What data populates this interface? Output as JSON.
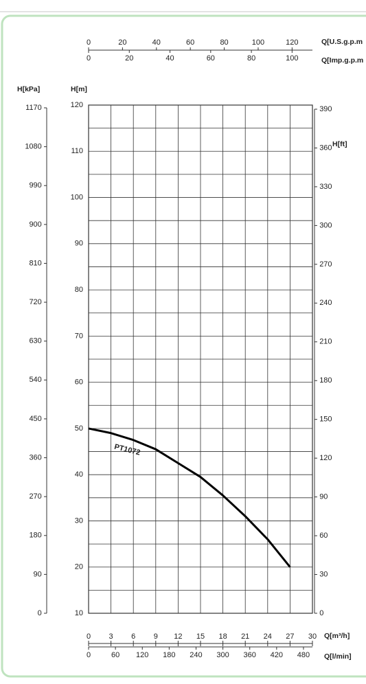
{
  "chart_data": {
    "type": "line",
    "x": [
      0,
      3,
      6,
      9,
      12,
      15,
      18,
      21,
      24,
      27
    ],
    "series": [
      {
        "name": "PT1072",
        "color": "#000000",
        "values": [
          50,
          49,
          47.5,
          45.5,
          42.5,
          39.5,
          35.5,
          31,
          26,
          20
        ]
      }
    ],
    "xlabel": "Q[m³/h]",
    "ylabel": "H[m]",
    "xlim": [
      0,
      30
    ],
    "xticks": [
      0,
      3,
      6,
      9,
      12,
      15,
      18,
      21,
      24,
      27,
      30
    ],
    "ylim": [
      10,
      120
    ],
    "yticks": [
      10,
      20,
      30,
      40,
      50,
      60,
      70,
      80,
      90,
      100,
      110,
      120
    ],
    "grid": true,
    "extra_axes": [
      {
        "label": "H[kPa]",
        "side": "left",
        "lim": [
          0,
          1170
        ],
        "ticks": [
          0,
          90,
          180,
          270,
          360,
          450,
          540,
          630,
          720,
          810,
          900,
          990,
          1080,
          1170
        ]
      },
      {
        "label": "H[ft]",
        "side": "right",
        "lim": [
          0,
          390
        ],
        "ticks": [
          0,
          30,
          60,
          90,
          120,
          150,
          180,
          210,
          240,
          270,
          300,
          330,
          360,
          390
        ]
      },
      {
        "label": "Q[U.S.g.p.m",
        "side": "top",
        "lim": [
          0,
          132
        ],
        "ticks": [
          0,
          20,
          40,
          60,
          80,
          100,
          120
        ]
      },
      {
        "label": "Q[Imp.g.p.m",
        "side": "top",
        "lim": [
          0,
          110
        ],
        "ticks": [
          0,
          20,
          40,
          60,
          80,
          100
        ]
      },
      {
        "label": "Q[l/min]",
        "side": "bottom",
        "lim": [
          0,
          500
        ],
        "ticks": [
          0,
          60,
          120,
          180,
          240,
          300,
          360,
          420,
          480
        ]
      }
    ]
  }
}
